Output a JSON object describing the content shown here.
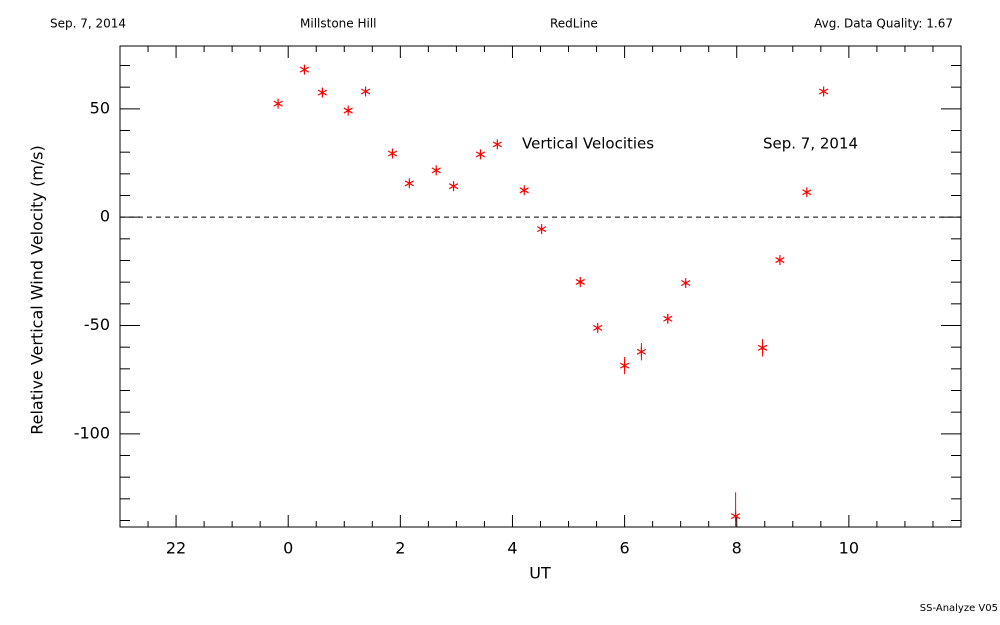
{
  "chart_data": {
    "type": "scatter",
    "header": [
      "Sep. 7, 2014",
      "Millstone Hill",
      "RedLine",
      "Avg. Data Quality: 1.67"
    ],
    "annotations": [
      "Vertical Velocities",
      "Sep. 7, 2014"
    ],
    "footer": "SS-Analyze V05",
    "xlabel": "UT",
    "ylabel": "Relative Vertical Wind Velocity (m/s)",
    "color": "#ff0000",
    "x": [
      -0.18,
      0.29,
      0.61,
      1.07,
      1.38,
      1.86,
      2.16,
      2.64,
      2.95,
      3.43,
      3.73,
      4.21,
      4.52,
      5.21,
      5.52,
      6.0,
      6.3,
      6.77,
      7.09,
      7.98,
      8.46,
      8.77,
      9.25,
      9.55
    ],
    "values": [
      52.4,
      68.1,
      57.5,
      49.2,
      58.0,
      29.4,
      15.6,
      21.6,
      14.3,
      29.0,
      33.6,
      12.4,
      -5.5,
      -29.9,
      -51.1,
      -68.5,
      -62.1,
      -46.9,
      -30.4,
      -138,
      -60.3,
      -19.8,
      11.5,
      58.0
    ],
    "errors": [
      1,
      1,
      1,
      1,
      1,
      1,
      1,
      1,
      1,
      1,
      1,
      1,
      1,
      1,
      1,
      4,
      4,
      2,
      1,
      11,
      4,
      1,
      1,
      1
    ],
    "reference_line": 0,
    "xlim": [
      -3,
      12
    ],
    "ylim": [
      -143,
      79
    ],
    "xticks": [
      {
        "value": -2,
        "label": "22"
      },
      0,
      2,
      4,
      6,
      8,
      10
    ],
    "yticks": [
      -100,
      -50,
      0,
      50
    ],
    "xminorticks": [
      -3,
      -2.5,
      -1.5,
      -1,
      -0.5,
      0.5,
      1,
      1.5,
      2.5,
      3,
      3.5,
      4.5,
      5,
      5.5,
      6.5,
      7,
      7.5,
      8.5,
      9,
      9.5,
      10.5,
      11,
      11.5,
      12
    ],
    "yminorticks": [
      -140,
      -130,
      -120,
      -110,
      -90,
      -80,
      -70,
      -60,
      -40,
      -30,
      -20,
      -10,
      10,
      20,
      30,
      40,
      60,
      70
    ]
  }
}
